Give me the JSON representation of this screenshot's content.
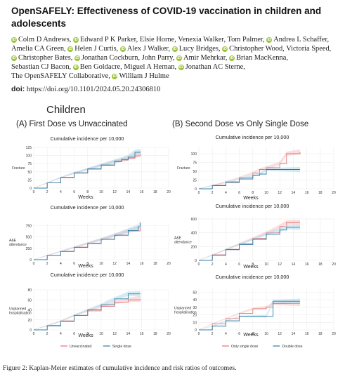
{
  "paper": {
    "title": "OpenSAFELY: Effectiveness of COVID-19 vaccination in children and adolescents",
    "authors": [
      {
        "name": "Colm D Andrews,",
        "orcid": true
      },
      {
        "name": "Edward P K Parker,",
        "orcid": true
      },
      {
        "name": "Elsie Horne,",
        "orcid": false
      },
      {
        "name": "Venexia Walker,",
        "orcid": false
      },
      {
        "name": "Tom Palmer,",
        "orcid": false
      },
      {
        "name": "Andrea L Schaffer,",
        "orcid": true
      },
      {
        "name": "Amelia CA Green,",
        "orcid": false
      },
      {
        "name": "Helen J Curtis,",
        "orcid": true
      },
      {
        "name": "Alex J Walker,",
        "orcid": true
      },
      {
        "name": "Lucy Bridges,",
        "orcid": true
      },
      {
        "name": "Christopher Wood,",
        "orcid": true
      },
      {
        "name": "Victoria Speed,",
        "orcid": false
      },
      {
        "name": "Christopher Bates,",
        "orcid": true
      },
      {
        "name": "Jonathan Cockburn,",
        "orcid": true
      },
      {
        "name": "John Parry,",
        "orcid": false
      },
      {
        "name": "Amir Mehrkar,",
        "orcid": true
      },
      {
        "name": "Brian MacKenna,",
        "orcid": true
      },
      {
        "name": "Sebastian CJ Bacon,",
        "orcid": false
      },
      {
        "name": "Ben Goldacre,",
        "orcid": true
      },
      {
        "name": "Miguel A Hernan,",
        "orcid": false
      },
      {
        "name": "Jonathan AC Sterne,",
        "orcid": true
      },
      {
        "name": "The OpenSAFELY Collaborative,",
        "orcid": false
      },
      {
        "name": "William J Hulme",
        "orcid": true
      }
    ],
    "doi_label": "doi:",
    "doi_url": "https://doi.org/10.1101/2024.05.20.24306810",
    "caption": "Figure 2: Kaplan-Meier estimates of cumulative incidence and risk ratios of outcomes.",
    "orcid_glyph": "iD"
  },
  "figure": {
    "title": "Children",
    "panels": [
      {
        "label": "(A) First Dose vs Unvaccinated"
      },
      {
        "label": "(B) Second Dose vs Only Single Dose"
      }
    ],
    "colors": {
      "red": "#e57373",
      "blue": "#2f7da6",
      "red_band": "#f4b8b8",
      "blue_band": "#9fd3e6"
    }
  },
  "chart_data": [
    {
      "type": "line",
      "panel": "A",
      "outcome": "Fracture",
      "title": "Cumulative incidence per 10,000",
      "xlabel": "Weeks",
      "ylabel": "Fracture",
      "xlim": [
        0,
        20
      ],
      "ylim": [
        0,
        125
      ],
      "yticks": [
        0,
        25,
        50,
        75,
        100,
        125
      ],
      "xticks": [
        0,
        2,
        4,
        6,
        8,
        10,
        12,
        14,
        16,
        18,
        20
      ],
      "series": [
        {
          "name": "Unvaccinated",
          "color": "red",
          "x": [
            0,
            2,
            4,
            6,
            8,
            10,
            12,
            13,
            14,
            15,
            15.8
          ],
          "y": [
            0,
            16,
            32,
            46,
            58,
            70,
            81,
            86,
            92,
            99,
            106
          ]
        },
        {
          "name": "Single dose",
          "color": "blue",
          "x": [
            0,
            2,
            4,
            6,
            8,
            10,
            12,
            13,
            14,
            15,
            15.8
          ],
          "y": [
            0,
            16,
            33,
            47,
            59,
            71,
            83,
            88,
            95,
            110,
            112
          ]
        }
      ]
    },
    {
      "type": "line",
      "panel": "A",
      "outcome": "A&E attendance",
      "title": "Cumulative incidence per 10,000",
      "xlabel": "Weeks",
      "ylabel": "A&E attendance",
      "xlim": [
        0,
        20
      ],
      "ylim": [
        0,
        800
      ],
      "yticks": [
        0,
        250,
        500,
        750
      ],
      "xticks": [
        0,
        2,
        4,
        6,
        8,
        10,
        12,
        14,
        16,
        18,
        20
      ],
      "series": [
        {
          "name": "Unvaccinated",
          "color": "red",
          "x": [
            0,
            2,
            4,
            6,
            8,
            10,
            12,
            14,
            15.8
          ],
          "y": [
            0,
            95,
            185,
            275,
            365,
            450,
            540,
            630,
            700
          ]
        },
        {
          "name": "Single dose",
          "color": "blue",
          "x": [
            0,
            2,
            4,
            6,
            8,
            10,
            12,
            14,
            15.5,
            15.8
          ],
          "y": [
            0,
            92,
            180,
            270,
            355,
            445,
            535,
            640,
            720,
            810
          ]
        }
      ]
    },
    {
      "type": "line",
      "panel": "A",
      "outcome": "Unplanned hospitalisation",
      "title": "Cumulative incidence per 10,000",
      "xlabel": "Weeks",
      "ylabel": "Unplanned hospitalisation",
      "xlim": [
        0,
        20
      ],
      "ylim": [
        0,
        80
      ],
      "yticks": [
        0,
        20,
        40,
        60,
        80
      ],
      "xticks": [
        0,
        2,
        4,
        6,
        8,
        10,
        12,
        14,
        16,
        18,
        20
      ],
      "series": [
        {
          "name": "Unvaccinated",
          "color": "red",
          "x": [
            0,
            2,
            4,
            6,
            8,
            10,
            12,
            14,
            15.8
          ],
          "y": [
            0,
            9,
            18,
            29,
            38,
            47,
            55,
            60,
            62
          ]
        },
        {
          "name": "Single dose",
          "color": "blue",
          "x": [
            0,
            2,
            4,
            6,
            8,
            10,
            12,
            14,
            15.8
          ],
          "y": [
            0,
            8,
            17,
            29,
            40,
            50,
            62,
            72,
            72
          ]
        }
      ]
    },
    {
      "type": "line",
      "panel": "B",
      "outcome": "Fracture",
      "title": "Cumulative incidence per 10,000",
      "xlabel": "Weeks",
      "ylabel": "Fracture",
      "xlim": [
        0,
        20
      ],
      "ylim": [
        0,
        120
      ],
      "yticks": [
        0,
        25,
        50,
        75,
        100
      ],
      "xticks": [
        0,
        2,
        4,
        6,
        8,
        10,
        12,
        14,
        16,
        18,
        20
      ],
      "series": [
        {
          "name": "Only single dose",
          "color": "red",
          "x": [
            0,
            2,
            4,
            6,
            8,
            9,
            10,
            12,
            13,
            15
          ],
          "y": [
            0,
            10,
            20,
            32,
            45,
            55,
            60,
            72,
            100,
            105
          ]
        },
        {
          "name": "Double dose",
          "color": "blue",
          "x": [
            0,
            2,
            4,
            6,
            8,
            9,
            10,
            12,
            13,
            15
          ],
          "y": [
            0,
            9,
            18,
            28,
            38,
            42,
            55,
            55,
            55,
            55
          ]
        }
      ]
    },
    {
      "type": "line",
      "panel": "B",
      "outcome": "A&E attendance",
      "title": "Cumulative incidence per 10,000",
      "xlabel": "Weeks",
      "ylabel": "A&E attendance",
      "xlim": [
        0,
        20
      ],
      "ylim": [
        0,
        620
      ],
      "yticks": [
        0,
        200,
        400,
        600
      ],
      "xticks": [
        0,
        2,
        4,
        6,
        8,
        10,
        12,
        14,
        16,
        18,
        20
      ],
      "series": [
        {
          "name": "Only single dose",
          "color": "red",
          "x": [
            0,
            2,
            4,
            6,
            8,
            10,
            12,
            13,
            15
          ],
          "y": [
            0,
            80,
            160,
            240,
            320,
            400,
            490,
            550,
            550
          ]
        },
        {
          "name": "Double dose",
          "color": "blue",
          "x": [
            0,
            2,
            4,
            6,
            8,
            10,
            12,
            13,
            15
          ],
          "y": [
            0,
            75,
            155,
            230,
            305,
            380,
            440,
            480,
            480
          ]
        }
      ]
    },
    {
      "type": "line",
      "panel": "B",
      "outcome": "Unplanned hospitalisation",
      "title": "Cumulative incidence per 10,000",
      "xlabel": "Weeks",
      "ylabel": "Unplanned hospitalisation",
      "xlim": [
        0,
        20
      ],
      "ylim": [
        0,
        55
      ],
      "yticks": [
        0,
        10,
        20,
        30,
        40,
        50
      ],
      "xticks": [
        0,
        2,
        4,
        6,
        8,
        10,
        12,
        14,
        16,
        18,
        20
      ],
      "series": [
        {
          "name": "Only single dose",
          "color": "red",
          "x": [
            0,
            2,
            4,
            6,
            8,
            10,
            11,
            15
          ],
          "y": [
            0,
            8,
            15,
            22,
            28,
            30,
            35,
            35
          ]
        },
        {
          "name": "Double dose",
          "color": "blue",
          "x": [
            0,
            2,
            4,
            6,
            8,
            10,
            11,
            15
          ],
          "y": [
            0,
            5,
            12,
            18,
            18,
            18,
            38,
            38
          ]
        }
      ]
    }
  ],
  "legends": {
    "A": [
      {
        "label": "Unvaccinated",
        "color": "red"
      },
      {
        "label": "Single dose",
        "color": "blue"
      }
    ],
    "B": [
      {
        "label": "Only single dose",
        "color": "red"
      },
      {
        "label": "Double dose",
        "color": "blue"
      }
    ]
  }
}
